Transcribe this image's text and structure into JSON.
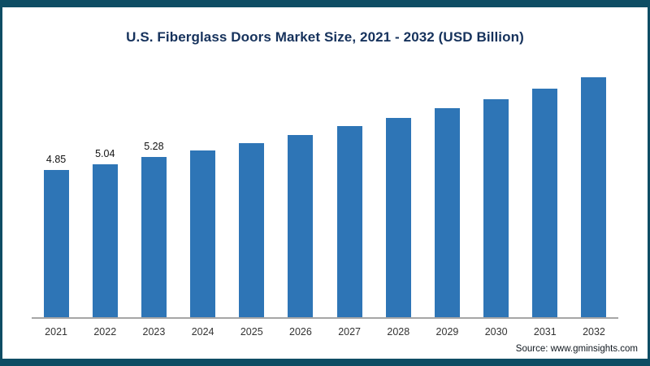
{
  "chart_data": {
    "type": "bar",
    "title": "U.S. Fiberglass Doors Market Size, 2021 - 2032 (USD Billion)",
    "categories": [
      "2021",
      "2022",
      "2023",
      "2024",
      "2025",
      "2026",
      "2027",
      "2028",
      "2029",
      "2030",
      "2031",
      "2032"
    ],
    "values": [
      4.85,
      5.04,
      5.28,
      5.5,
      5.74,
      5.99,
      6.3,
      6.57,
      6.87,
      7.18,
      7.52,
      7.9
    ],
    "bar_labels": [
      "4.85",
      "5.04",
      "5.28",
      "",
      "",
      "",
      "",
      "",
      "",
      "",
      "",
      ""
    ],
    "bar_color": "#2E75B6",
    "xlabel": "",
    "ylabel": "",
    "ylim": [
      0,
      8.2
    ],
    "grid": false,
    "legend": false,
    "axis_line_color": "#a6a6a6"
  },
  "frame": {
    "border_color": "#0E4D64",
    "background": "#ffffff"
  },
  "footer": {
    "source": "Source: www.gminsights.com"
  }
}
